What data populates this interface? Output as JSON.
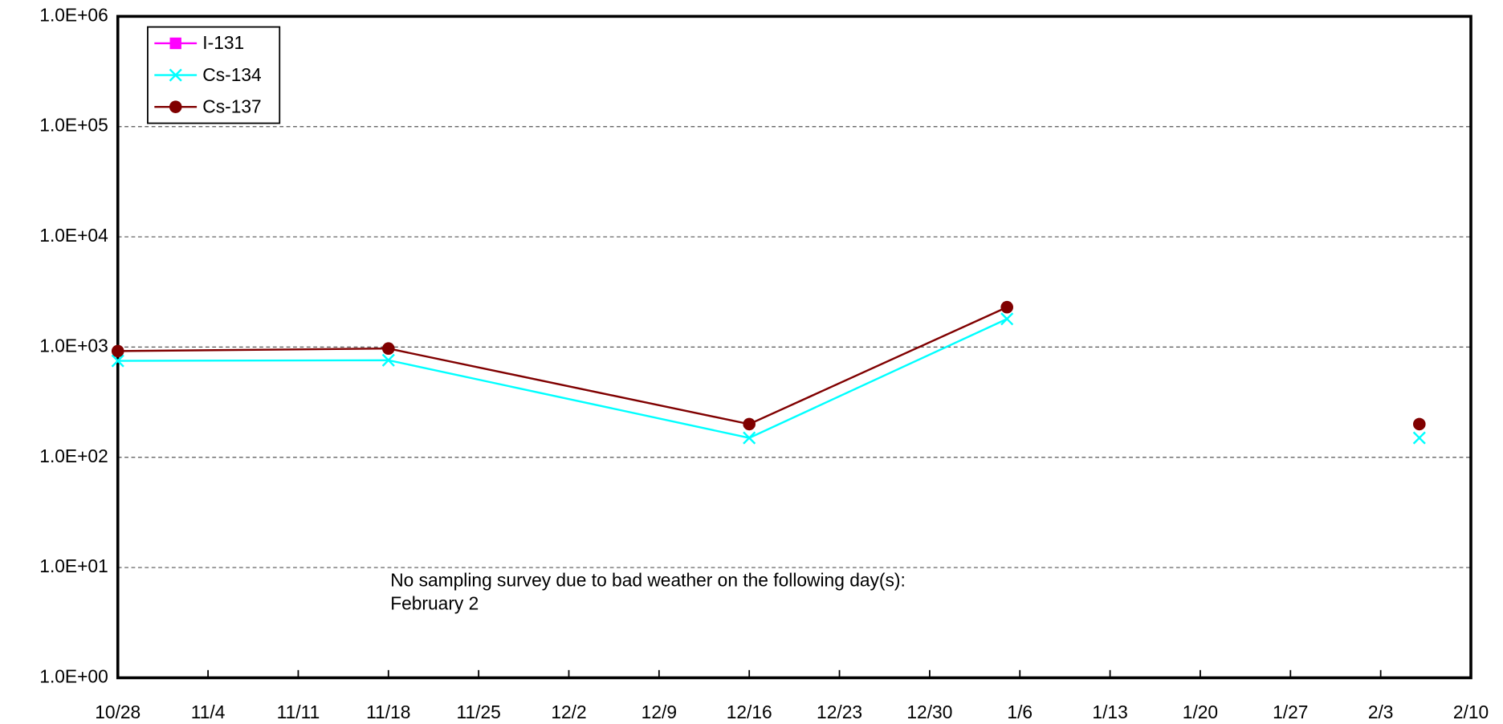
{
  "chart_data": {
    "type": "line",
    "x": [
      "10/28",
      "11/18",
      "12/16",
      "1/5",
      "2/2",
      "2/6"
    ],
    "series": [
      {
        "name": "I-131",
        "color": "#ff00ff",
        "marker": "square",
        "values": [
          null,
          null,
          null,
          null,
          null,
          null
        ]
      },
      {
        "name": "Cs-134",
        "color": "#00ffff",
        "marker": "x",
        "values": [
          750,
          760,
          150,
          1800,
          null,
          150
        ]
      },
      {
        "name": "Cs-137",
        "color": "#800000",
        "marker": "circle",
        "values": [
          920,
          970,
          200,
          2300,
          null,
          200
        ]
      }
    ],
    "ylim": [
      1,
      1000000
    ],
    "log_y": true,
    "yticks": [
      {
        "value": 1,
        "label": "1.0E+00"
      },
      {
        "value": 10,
        "label": "1.0E+01"
      },
      {
        "value": 100,
        "label": "1.0E+02"
      },
      {
        "value": 1000,
        "label": "1.0E+03"
      },
      {
        "value": 10000,
        "label": "1.0E+04"
      },
      {
        "value": 100000,
        "label": "1.0E+05"
      },
      {
        "value": 1000000,
        "label": "1.0E+06"
      }
    ],
    "xlim": [
      "10/28",
      "2/10"
    ],
    "xticks": [
      "10/28",
      "11/4",
      "11/11",
      "11/18",
      "11/25",
      "12/2",
      "12/9",
      "12/16",
      "12/23",
      "12/30",
      "1/6",
      "1/13",
      "1/20",
      "1/27",
      "2/3",
      "2/10"
    ],
    "grid": true,
    "legend": "upper left",
    "annotations": [
      "No sampling survey due to bad weather on the following day(s):",
      "February 2"
    ]
  }
}
